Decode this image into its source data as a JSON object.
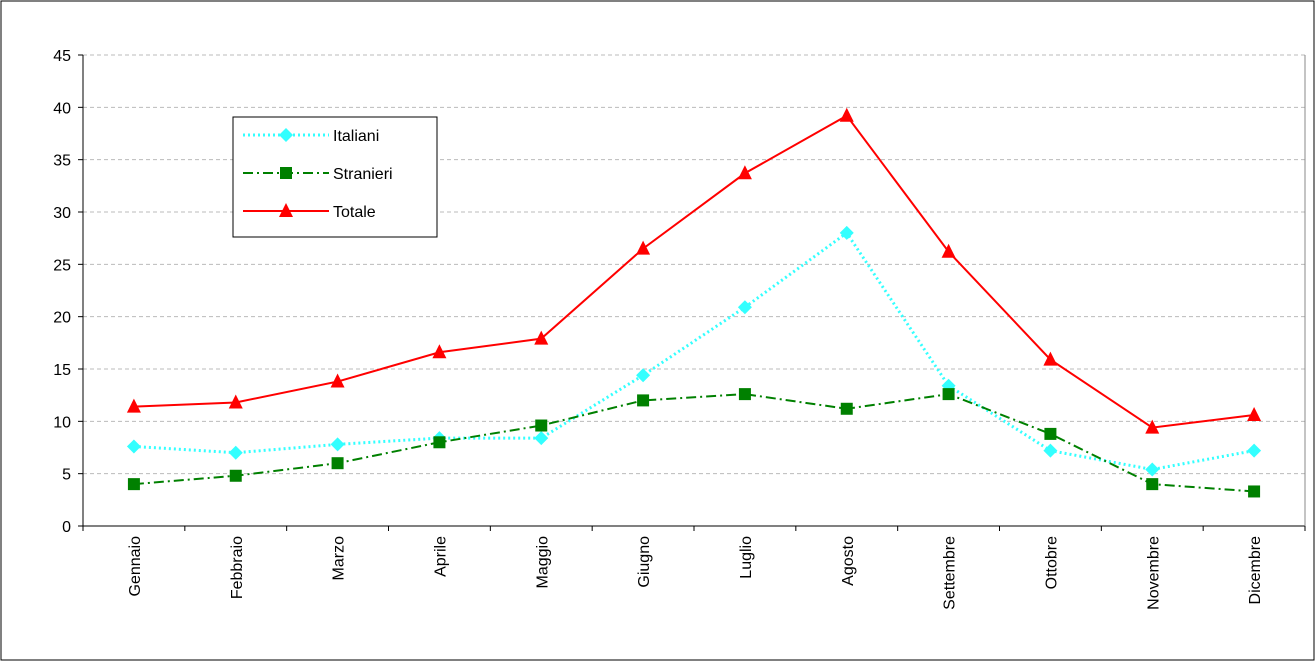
{
  "chart_data": {
    "type": "line",
    "categories": [
      "Gennaio",
      "Febbraio",
      "Marzo",
      "Aprile",
      "Maggio",
      "Giugno",
      "Luglio",
      "Agosto",
      "Settembre",
      "Ottobre",
      "Novembre",
      "Dicembre"
    ],
    "series": [
      {
        "name": "Italiani",
        "color": "#33ffff",
        "line": "dotted",
        "marker": "diamond",
        "values": [
          7.6,
          7.0,
          7.8,
          8.4,
          8.4,
          14.4,
          20.9,
          28.0,
          13.4,
          7.2,
          5.4,
          7.2
        ]
      },
      {
        "name": "Stranieri",
        "color": "#008000",
        "line": "dashdot",
        "marker": "square",
        "values": [
          4.0,
          4.8,
          6.0,
          8.0,
          9.6,
          12.0,
          12.6,
          11.2,
          12.6,
          8.8,
          4.0,
          3.3
        ]
      },
      {
        "name": "Totale",
        "color": "#ff0000",
        "line": "solid",
        "marker": "triangle",
        "values": [
          11.4,
          11.8,
          13.8,
          16.6,
          17.9,
          26.5,
          33.7,
          39.2,
          26.2,
          15.9,
          9.4,
          10.6
        ]
      }
    ],
    "ylim": [
      0,
      45
    ],
    "yticks": [
      0,
      5,
      10,
      15,
      20,
      25,
      30,
      35,
      40,
      45
    ],
    "grid": true,
    "legend": "upper left"
  }
}
